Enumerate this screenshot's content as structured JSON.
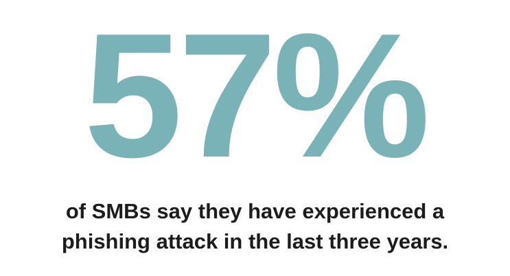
{
  "stat": {
    "value": "57%",
    "color": "#79b3b8"
  },
  "caption": {
    "line1": "of SMBs say they have experienced a",
    "line2": "phishing attack in the last three years."
  }
}
